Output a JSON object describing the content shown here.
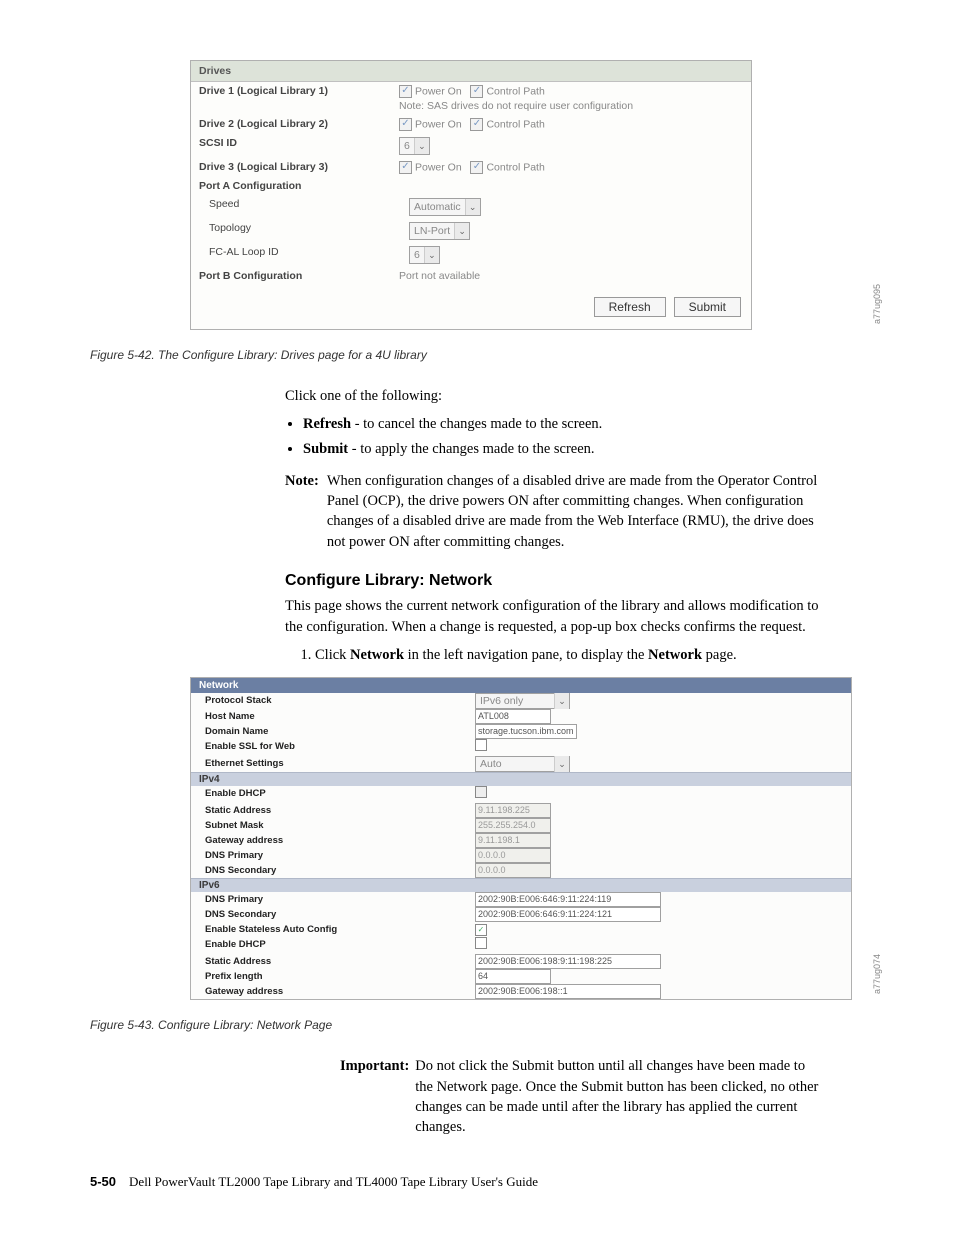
{
  "fig1": {
    "header": "Drives",
    "rows": [
      {
        "label": "Drive 1 (Logical Library 1)",
        "bold": true,
        "value_html": "cbcb_note",
        "cb1": "Power On",
        "cb2": "Control Path",
        "note": "Note: SAS drives do not require user configuration"
      },
      {
        "label": "Drive 2 (Logical Library 2)",
        "bold": true,
        "value_html": "cbcb",
        "cb1": "Power On",
        "cb2": "Control Path"
      },
      {
        "label": "SCSI ID",
        "bold": true,
        "value_html": "sel",
        "sel_text": "6"
      },
      {
        "label": "Drive 3 (Logical Library 3)",
        "bold": true,
        "value_html": "cbcb",
        "cb1": "Power On",
        "cb2": "Control Path"
      },
      {
        "label": "Port A Configuration",
        "bold": true,
        "value_html": "none"
      },
      {
        "label": "Speed",
        "bold": false,
        "indent": true,
        "value_html": "sel",
        "sel_text": "Automatic"
      },
      {
        "label": "Topology",
        "bold": false,
        "indent": true,
        "value_html": "sel",
        "sel_text": "LN-Port"
      },
      {
        "label": "FC-AL Loop ID",
        "bold": false,
        "indent": true,
        "value_html": "sel",
        "sel_text": "6"
      },
      {
        "label": "Port B Configuration",
        "bold": true,
        "value_html": "text",
        "text": "Port not available"
      }
    ],
    "refresh": "Refresh",
    "submit": "Submit",
    "code": "a77ug095"
  },
  "caption1": "Figure 5-42. The Configure Library: Drives page for a 4U library",
  "click_intro": "Click one of the following:",
  "bullets": [
    {
      "b": "Refresh",
      "rest": " - to cancel the changes made to the screen."
    },
    {
      "b": "Submit",
      "rest": " - to apply the changes made to the screen."
    }
  ],
  "note_label": "Note:",
  "note_text": "When configuration changes of a disabled drive are made from the Operator Control Panel (OCP), the drive powers ON after committing changes. When configuration changes of a disabled drive are made from the Web Interface (RMU), the drive does not power ON after committing changes.",
  "section_heading": "Configure Library: Network",
  "section_intro": "This page shows the current network configuration of the library and allows modification to the configuration. When a change is requested, a pop-up box checks confirms the request.",
  "step1_pre": "Click ",
  "step1_b1": "Network",
  "step1_mid": " in the left navigation pane, to display the ",
  "step1_b2": "Network",
  "step1_post": " page.",
  "fig2": {
    "header": "Network",
    "top": [
      {
        "l": "Protocol Stack",
        "type": "sel",
        "v": "IPv6 only"
      },
      {
        "l": "Host Name",
        "type": "inp",
        "v": "ATL008"
      },
      {
        "l": "Domain Name",
        "type": "inp",
        "v": "storage.tucson.ibm.com"
      },
      {
        "l": "Enable SSL for Web",
        "type": "cb",
        "checked": false
      },
      {
        "l": "Ethernet Settings",
        "type": "sel",
        "v": "Auto"
      }
    ],
    "ipv4_label": "IPv4",
    "ipv4": [
      {
        "l": "Enable DHCP",
        "type": "cbd"
      },
      {
        "l": "Static Address",
        "type": "inpd",
        "v": "9.11.198.225"
      },
      {
        "l": "Subnet Mask",
        "type": "inpd",
        "v": "255.255.254.0"
      },
      {
        "l": "Gateway address",
        "type": "inpd",
        "v": "9.11.198.1"
      },
      {
        "l": "DNS Primary",
        "type": "inpd",
        "v": "0.0.0.0"
      },
      {
        "l": "DNS Secondary",
        "type": "inpd",
        "v": "0.0.0.0"
      }
    ],
    "ipv6_label": "IPv6",
    "ipv6": [
      {
        "l": "DNS Primary",
        "type": "inpw",
        "v": "2002:90B:E006:646:9:11:224:119"
      },
      {
        "l": "DNS Secondary",
        "type": "inpw",
        "v": "2002:90B:E006:646:9:11:224:121"
      },
      {
        "l": "Enable Stateless Auto Config",
        "type": "cb",
        "checked": true
      },
      {
        "l": "Enable DHCP",
        "type": "cb",
        "checked": false
      },
      {
        "l": "Static Address",
        "type": "inpw",
        "v": "2002:90B:E006:198:9:11:198:225"
      },
      {
        "l": "Prefix length",
        "type": "inp",
        "v": "64"
      },
      {
        "l": "Gateway address",
        "type": "inpw",
        "v": "2002:90B:E006:198::1"
      }
    ],
    "code": "a77ug074"
  },
  "caption2": "Figure 5-43. Configure Library: Network Page",
  "important_label": "Important:",
  "important_text": "Do not click the Submit button until all changes have been made to the Network page. Once the Submit button has been clicked, no other changes can be made until after the library has applied the current changes.",
  "page_num": "5-50",
  "footer_text": "Dell PowerVault TL2000 Tape Library and TL4000 Tape Library User's Guide"
}
